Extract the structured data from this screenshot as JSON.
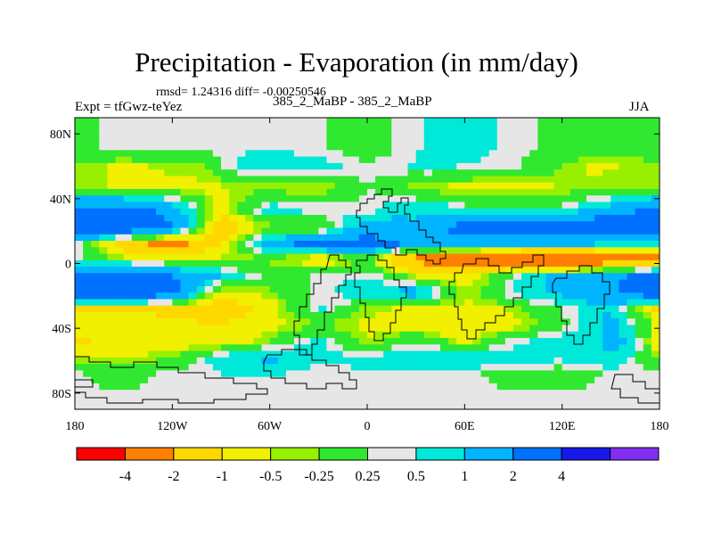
{
  "chart_data": {
    "type": "heatmap",
    "title": "Precipitation - Evaporation (in mm/day)",
    "stats_text": "rmsd= 1.24316 diff= -0.00250546",
    "experiment_label": "Expt = tfGwz-teYez",
    "case_label": "385_2_MaBP - 385_2_MaBP",
    "season": "JJA",
    "units": "mm/day",
    "x_range": [
      -180,
      180
    ],
    "y_range": [
      -90,
      90
    ],
    "x_ticks": [
      {
        "value": -180,
        "label": "180"
      },
      {
        "value": -120,
        "label": "120W"
      },
      {
        "value": -60,
        "label": "60W"
      },
      {
        "value": 0,
        "label": "0"
      },
      {
        "value": 60,
        "label": "60E"
      },
      {
        "value": 120,
        "label": "120E"
      },
      {
        "value": 180,
        "label": "180"
      }
    ],
    "y_ticks": [
      {
        "value": 80,
        "label": "80N"
      },
      {
        "value": 40,
        "label": "40N"
      },
      {
        "value": 0,
        "label": "0"
      },
      {
        "value": -40,
        "label": "40S"
      },
      {
        "value": -80,
        "label": "80S"
      }
    ],
    "colorbar": {
      "colors": [
        "#ff0000",
        "#ff8000",
        "#ffd800",
        "#f0f000",
        "#98f000",
        "#30e830",
        "#e6e6e6",
        "#00e8d8",
        "#00b4ff",
        "#0070ff",
        "#1818e8",
        "#8030f0"
      ],
      "boundaries": [
        {
          "value": -4,
          "label": "-4"
        },
        {
          "value": -2,
          "label": "-2"
        },
        {
          "value": -1,
          "label": "-1"
        },
        {
          "value": -0.5,
          "label": "-0.5"
        },
        {
          "value": -0.25,
          "label": "-0.25"
        },
        {
          "value": 0.25,
          "label": "0.25"
        },
        {
          "value": 0.5,
          "label": "0.5"
        },
        {
          "value": 1,
          "label": "1"
        },
        {
          "value": 2,
          "label": "2"
        },
        {
          "value": 4,
          "label": "4"
        }
      ]
    },
    "field_bands": [
      {
        "lat": 71,
        "seg": [
          [
            -180,
            0
          ],
          [
            -160,
            0.3
          ],
          [
            -120,
            0.3
          ],
          [
            -60,
            0.5
          ],
          [
            -30,
            0.3
          ],
          [
            0,
            0
          ],
          [
            40,
            0.6
          ],
          [
            60,
            0.7
          ],
          [
            100,
            0.3
          ],
          [
            140,
            0
          ],
          [
            180,
            0
          ]
        ]
      },
      {
        "lat": 60,
        "seg": [
          [
            -180,
            -0.3
          ],
          [
            -150,
            -0.6
          ],
          [
            -100,
            -0.3
          ],
          [
            -80,
            0.6
          ],
          [
            -40,
            0.8
          ],
          [
            0,
            0.3
          ],
          [
            40,
            0.6
          ],
          [
            90,
            0.3
          ],
          [
            140,
            -0.6
          ],
          [
            180,
            -0.3
          ]
        ]
      },
      {
        "lat": 47,
        "seg": [
          [
            -180,
            -0.4
          ],
          [
            -140,
            -0.6
          ],
          [
            -100,
            -0.6
          ],
          [
            -70,
            -0.4
          ],
          [
            -30,
            -0.6
          ],
          [
            0,
            0.3
          ],
          [
            30,
            -0.4
          ],
          [
            60,
            -0.7
          ],
          [
            100,
            -0.6
          ],
          [
            140,
            -0.4
          ],
          [
            180,
            -0.4
          ]
        ]
      },
      {
        "lat": 33,
        "seg": [
          [
            -180,
            2.5
          ],
          [
            -150,
            2.6
          ],
          [
            -120,
            1.5
          ],
          [
            -90,
            -0.8
          ],
          [
            -60,
            0.8
          ],
          [
            -30,
            0.5
          ],
          [
            0,
            0.3
          ],
          [
            20,
            1
          ],
          [
            50,
            0.8
          ],
          [
            70,
            0.3
          ],
          [
            120,
            0.4
          ],
          [
            180,
            2.5
          ]
        ]
      },
      {
        "lat": 22,
        "seg": [
          [
            -180,
            3
          ],
          [
            -150,
            3.2
          ],
          [
            -120,
            2
          ],
          [
            -90,
            -1.5
          ],
          [
            -60,
            -0.4
          ],
          [
            -30,
            -0.3
          ],
          [
            0,
            1.5
          ],
          [
            30,
            1
          ],
          [
            60,
            2.5
          ],
          [
            100,
            3
          ],
          [
            140,
            3
          ],
          [
            180,
            3
          ]
        ]
      },
      {
        "lat": 12,
        "seg": [
          [
            -180,
            0.6
          ],
          [
            -150,
            -1.5
          ],
          [
            -120,
            -2.5
          ],
          [
            -90,
            -1
          ],
          [
            -60,
            1.5
          ],
          [
            -30,
            2.5
          ],
          [
            0,
            2.5
          ],
          [
            30,
            1.8
          ],
          [
            60,
            1.5
          ],
          [
            100,
            1
          ],
          [
            140,
            1
          ],
          [
            180,
            0.6
          ]
        ]
      },
      {
        "lat": 3,
        "seg": [
          [
            -180,
            0.3
          ],
          [
            -150,
            -0.4
          ],
          [
            -100,
            -0.5
          ],
          [
            -60,
            -0.3
          ],
          [
            -30,
            -1
          ],
          [
            0,
            -0.3
          ],
          [
            30,
            -2.5
          ],
          [
            60,
            -2.8
          ],
          [
            90,
            -3
          ],
          [
            110,
            -4.5
          ],
          [
            140,
            -3.5
          ],
          [
            180,
            -2.5
          ]
        ]
      },
      {
        "lat": -8,
        "seg": [
          [
            -180,
            2.5
          ],
          [
            -150,
            3
          ],
          [
            -120,
            2
          ],
          [
            -90,
            1
          ],
          [
            -60,
            0
          ],
          [
            -30,
            0.3
          ],
          [
            0,
            0.5
          ],
          [
            30,
            -0.5
          ],
          [
            60,
            -1
          ],
          [
            100,
            0.8
          ],
          [
            140,
            1.5
          ],
          [
            180,
            2.5
          ]
        ]
      },
      {
        "lat": -18,
        "seg": [
          [
            -180,
            3.2
          ],
          [
            -150,
            3.2
          ],
          [
            -120,
            2.5
          ],
          [
            -90,
            -0.8
          ],
          [
            -60,
            -0.3
          ],
          [
            -30,
            0.4
          ],
          [
            0,
            0.8
          ],
          [
            30,
            1.5
          ],
          [
            60,
            -0.4
          ],
          [
            100,
            0.8
          ],
          [
            140,
            1.5
          ],
          [
            180,
            3
          ]
        ]
      },
      {
        "lat": -28,
        "seg": [
          [
            -180,
            -1.2
          ],
          [
            -150,
            -1
          ],
          [
            -120,
            -1.2
          ],
          [
            -90,
            -1.5
          ],
          [
            -60,
            -0.8
          ],
          [
            -30,
            0.6
          ],
          [
            0,
            -0.4
          ],
          [
            40,
            -0.7
          ],
          [
            80,
            -0.6
          ],
          [
            120,
            0.3
          ],
          [
            150,
            1
          ],
          [
            180,
            -1.2
          ]
        ]
      },
      {
        "lat": -38,
        "seg": [
          [
            -180,
            -0.6
          ],
          [
            -150,
            -0.8
          ],
          [
            -120,
            -0.8
          ],
          [
            -90,
            -1
          ],
          [
            -60,
            -0.6
          ],
          [
            -30,
            -0.3
          ],
          [
            0,
            -0.6
          ],
          [
            30,
            -0.8
          ],
          [
            60,
            -1
          ],
          [
            90,
            -0.7
          ],
          [
            130,
            0.4
          ],
          [
            150,
            1.2
          ],
          [
            180,
            -0.6
          ]
        ]
      },
      {
        "lat": -48,
        "seg": [
          [
            -180,
            -1.2
          ],
          [
            -150,
            -0.6
          ],
          [
            -120,
            -0.8
          ],
          [
            -90,
            -1
          ],
          [
            -60,
            -0.3
          ],
          [
            -30,
            0.7
          ],
          [
            0,
            -0.5
          ],
          [
            30,
            0.3
          ],
          [
            60,
            -0.6
          ],
          [
            90,
            0.4
          ],
          [
            130,
            0.8
          ],
          [
            160,
            1.2
          ],
          [
            180,
            -1.2
          ]
        ]
      },
      {
        "lat": -58,
        "seg": [
          [
            -180,
            -0.4
          ],
          [
            -150,
            -0.6
          ],
          [
            -120,
            -0.3
          ],
          [
            -90,
            0.8
          ],
          [
            -60,
            1.2
          ],
          [
            -30,
            0.6
          ],
          [
            0,
            0.6
          ],
          [
            30,
            0.8
          ],
          [
            60,
            1
          ],
          [
            90,
            0.7
          ],
          [
            120,
            0.6
          ],
          [
            150,
            1
          ],
          [
            180,
            -0.4
          ]
        ]
      },
      {
        "lat": -68,
        "seg": [
          [
            -180,
            0.3
          ],
          [
            -150,
            0
          ],
          [
            -120,
            0.4
          ],
          [
            -90,
            0.5
          ],
          [
            -60,
            0.6
          ],
          [
            -30,
            0.3
          ],
          [
            0,
            0.5
          ],
          [
            30,
            0.3
          ],
          [
            60,
            0.4
          ],
          [
            90,
            0
          ],
          [
            120,
            0
          ],
          [
            150,
            0.3
          ],
          [
            180,
            0.3
          ]
        ]
      },
      {
        "lat": -80,
        "seg": [
          [
            -180,
            0.3
          ],
          [
            -120,
            0.3
          ],
          [
            -60,
            0.3
          ],
          [
            0,
            0.3
          ],
          [
            60,
            0.3
          ],
          [
            120,
            0.3
          ],
          [
            180,
            0.3
          ]
        ]
      }
    ]
  }
}
